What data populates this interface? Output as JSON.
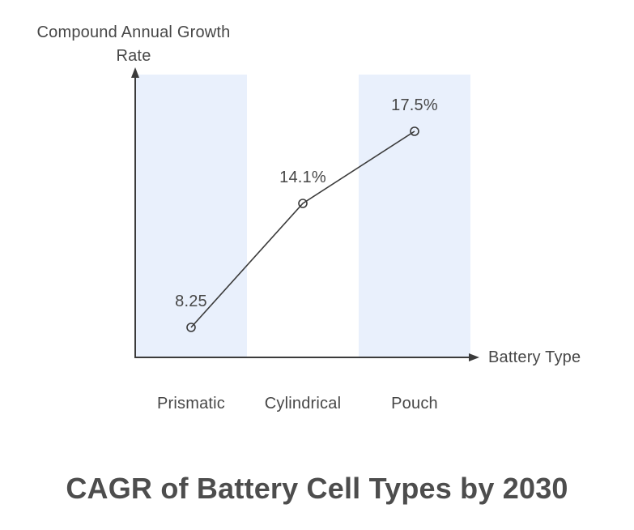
{
  "chart_data": {
    "type": "line",
    "title": "CAGR of Battery Cell Types by 2030",
    "xlabel": "Battery Type",
    "ylabel": "Compound Annual Growth Rate",
    "categories": [
      "Prismatic",
      "Cylindrical",
      "Pouch"
    ],
    "values": [
      8.25,
      14.1,
      17.5
    ],
    "value_labels": [
      "8.25",
      "14.1%",
      "17.5%"
    ],
    "highlighted_categories": [
      "Prismatic",
      "Pouch"
    ],
    "marker_style": "open-circle",
    "grid": false,
    "legend": false,
    "axis_ticks": "none",
    "ylim_implied": [
      6.85,
      20.5
    ]
  },
  "colors": {
    "band": "#E9F0FC",
    "line": "#3B3B3B",
    "text": "#474747",
    "background": "#FFFFFF"
  }
}
